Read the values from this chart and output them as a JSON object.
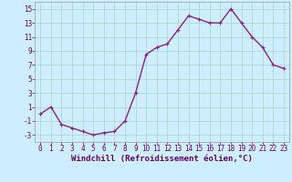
{
  "x": [
    0,
    1,
    2,
    3,
    4,
    5,
    6,
    7,
    8,
    9,
    10,
    11,
    12,
    13,
    14,
    15,
    16,
    17,
    18,
    19,
    20,
    21,
    22,
    23
  ],
  "y": [
    0,
    1,
    -1.5,
    -2,
    -2.5,
    -3,
    -2.7,
    -2.5,
    -1,
    3,
    8.5,
    9.5,
    10,
    12,
    14,
    13.5,
    13,
    13,
    15,
    13,
    11,
    9.5,
    7,
    6.5
  ],
  "line_color": "#882288",
  "marker_color": "#882288",
  "bg_color": "#cceeff",
  "grid_color": "#aaddcc",
  "xlabel": "Windchill (Refroidissement éolien,°C)",
  "yticks": [
    -3,
    -1,
    1,
    3,
    5,
    7,
    9,
    11,
    13,
    15
  ],
  "xticks": [
    0,
    1,
    2,
    3,
    4,
    5,
    6,
    7,
    8,
    9,
    10,
    11,
    12,
    13,
    14,
    15,
    16,
    17,
    18,
    19,
    20,
    21,
    22,
    23
  ],
  "xlim": [
    -0.5,
    23.5
  ],
  "ylim": [
    -4,
    16
  ],
  "tick_fontsize": 5.5,
  "xlabel_fontsize": 6.5,
  "marker_size": 2.5,
  "line_width": 1.0
}
